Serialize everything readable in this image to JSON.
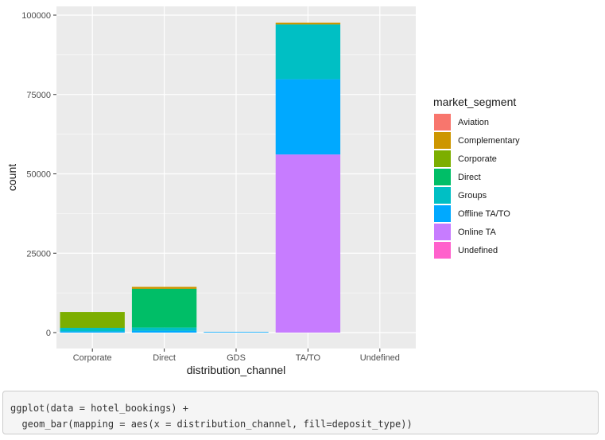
{
  "chart_data": {
    "type": "bar",
    "stacked": true,
    "xlabel": "distribution_channel",
    "ylabel": "count",
    "categories": [
      "Corporate",
      "Direct",
      "GDS",
      "TA/TO",
      "Undefined"
    ],
    "ylim": [
      0,
      100000
    ],
    "y_ticks": [
      0,
      25000,
      50000,
      75000,
      100000
    ],
    "y_tick_labels": [
      "0",
      "25000",
      "50000",
      "75000",
      "100000"
    ],
    "grid": true,
    "legend": {
      "title": "market_segment",
      "placement": "right",
      "entries": [
        {
          "name": "Aviation",
          "color": "#F8766D"
        },
        {
          "name": "Complementary",
          "color": "#CD9600"
        },
        {
          "name": "Corporate",
          "color": "#7CAE00"
        },
        {
          "name": "Direct",
          "color": "#00BE67"
        },
        {
          "name": "Groups",
          "color": "#00BFC4"
        },
        {
          "name": "Offline TA/TO",
          "color": "#00A9FF"
        },
        {
          "name": "Online TA",
          "color": "#C77CFF"
        },
        {
          "name": "Undefined",
          "color": "#FF61CC"
        }
      ]
    },
    "series": [
      {
        "name": "Online TA",
        "color": "#C77CFF",
        "values": [
          0,
          0,
          0,
          56100,
          0
        ]
      },
      {
        "name": "Offline TA/TO",
        "color": "#00A9FF",
        "values": [
          400,
          600,
          200,
          23700,
          0
        ]
      },
      {
        "name": "Groups",
        "color": "#00BFC4",
        "values": [
          1100,
          1000,
          0,
          17300,
          0
        ]
      },
      {
        "name": "Direct",
        "color": "#00BE67",
        "values": [
          0,
          12200,
          0,
          0,
          0
        ]
      },
      {
        "name": "Corporate",
        "color": "#7CAE00",
        "values": [
          5000,
          0,
          0,
          0,
          0
        ]
      },
      {
        "name": "Complementary",
        "color": "#CD9600",
        "values": [
          0,
          600,
          0,
          500,
          0
        ]
      },
      {
        "name": "Aviation",
        "color": "#F8766D",
        "values": [
          0,
          0,
          0,
          0,
          0
        ]
      },
      {
        "name": "Undefined",
        "color": "#FF61CC",
        "values": [
          0,
          0,
          0,
          0,
          0
        ]
      }
    ],
    "panel_background": "#EBEBEB",
    "grid_color": "#FFFFFF"
  },
  "code": {
    "lines": [
      "ggplot(data = hotel_bookings) +",
      "  geom_bar(mapping = aes(x = distribution_channel, fill=deposit_type))"
    ]
  }
}
